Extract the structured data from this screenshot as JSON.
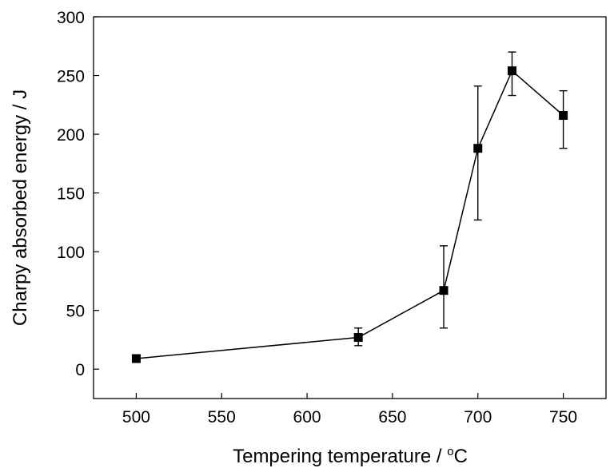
{
  "chart_data": {
    "type": "scatter",
    "title": "",
    "xlabel": "Tempering temperature / ",
    "xlabel_unit_sup": "o",
    "xlabel_unit": "C",
    "ylabel": "Charpy absorbed energy / J",
    "xlim": [
      475,
      775
    ],
    "ylim": [
      -25,
      300
    ],
    "x_ticks": [
      500,
      550,
      600,
      650,
      700,
      750
    ],
    "y_ticks": [
      0,
      50,
      100,
      150,
      200,
      250,
      300
    ],
    "grid": false,
    "legend": "none",
    "series": [
      {
        "marker": "square",
        "line": "solid",
        "color": "#000000",
        "points": [
          {
            "x": 500,
            "y": 9,
            "err_low": 9,
            "err_high": 9
          },
          {
            "x": 630,
            "y": 27,
            "err_low": 20,
            "err_high": 35
          },
          {
            "x": 680,
            "y": 67,
            "err_low": 35,
            "err_high": 105
          },
          {
            "x": 700,
            "y": 188,
            "err_low": 127,
            "err_high": 241
          },
          {
            "x": 720,
            "y": 254,
            "err_low": 233,
            "err_high": 270
          },
          {
            "x": 750,
            "y": 216,
            "err_low": 188,
            "err_high": 237
          }
        ]
      }
    ]
  }
}
